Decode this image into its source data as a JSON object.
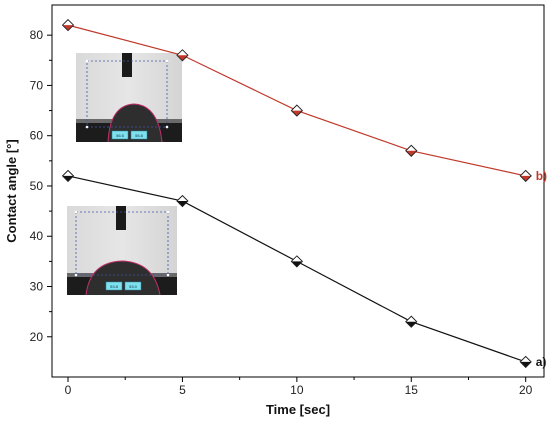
{
  "chart_data": {
    "type": "line",
    "title": "",
    "xlabel": "Time [sec]",
    "ylabel": "Contact angle [°]",
    "xlim": [
      -0.7,
      20.8
    ],
    "ylim": [
      12,
      86
    ],
    "xticks": [
      0,
      5,
      10,
      15,
      20
    ],
    "yticks": [
      20,
      30,
      40,
      50,
      60,
      70,
      80
    ],
    "grid": false,
    "series": [
      {
        "name": "b)",
        "color": "#c0392b",
        "marker": "diamond",
        "x": [
          0,
          5,
          10,
          15,
          20
        ],
        "y": [
          82,
          76,
          65,
          57,
          52
        ]
      },
      {
        "name": "a)",
        "color": "#111111",
        "marker": "diamond",
        "x": [
          0,
          5,
          10,
          15,
          20
        ],
        "y": [
          52,
          47,
          35,
          23,
          15
        ]
      }
    ],
    "insets": [
      {
        "label": "droplet-image-top",
        "readouts": [
          "56.5",
          "55.8"
        ]
      },
      {
        "label": "droplet-image-bottom",
        "readouts": [
          "53.8",
          "53.0"
        ]
      }
    ]
  }
}
